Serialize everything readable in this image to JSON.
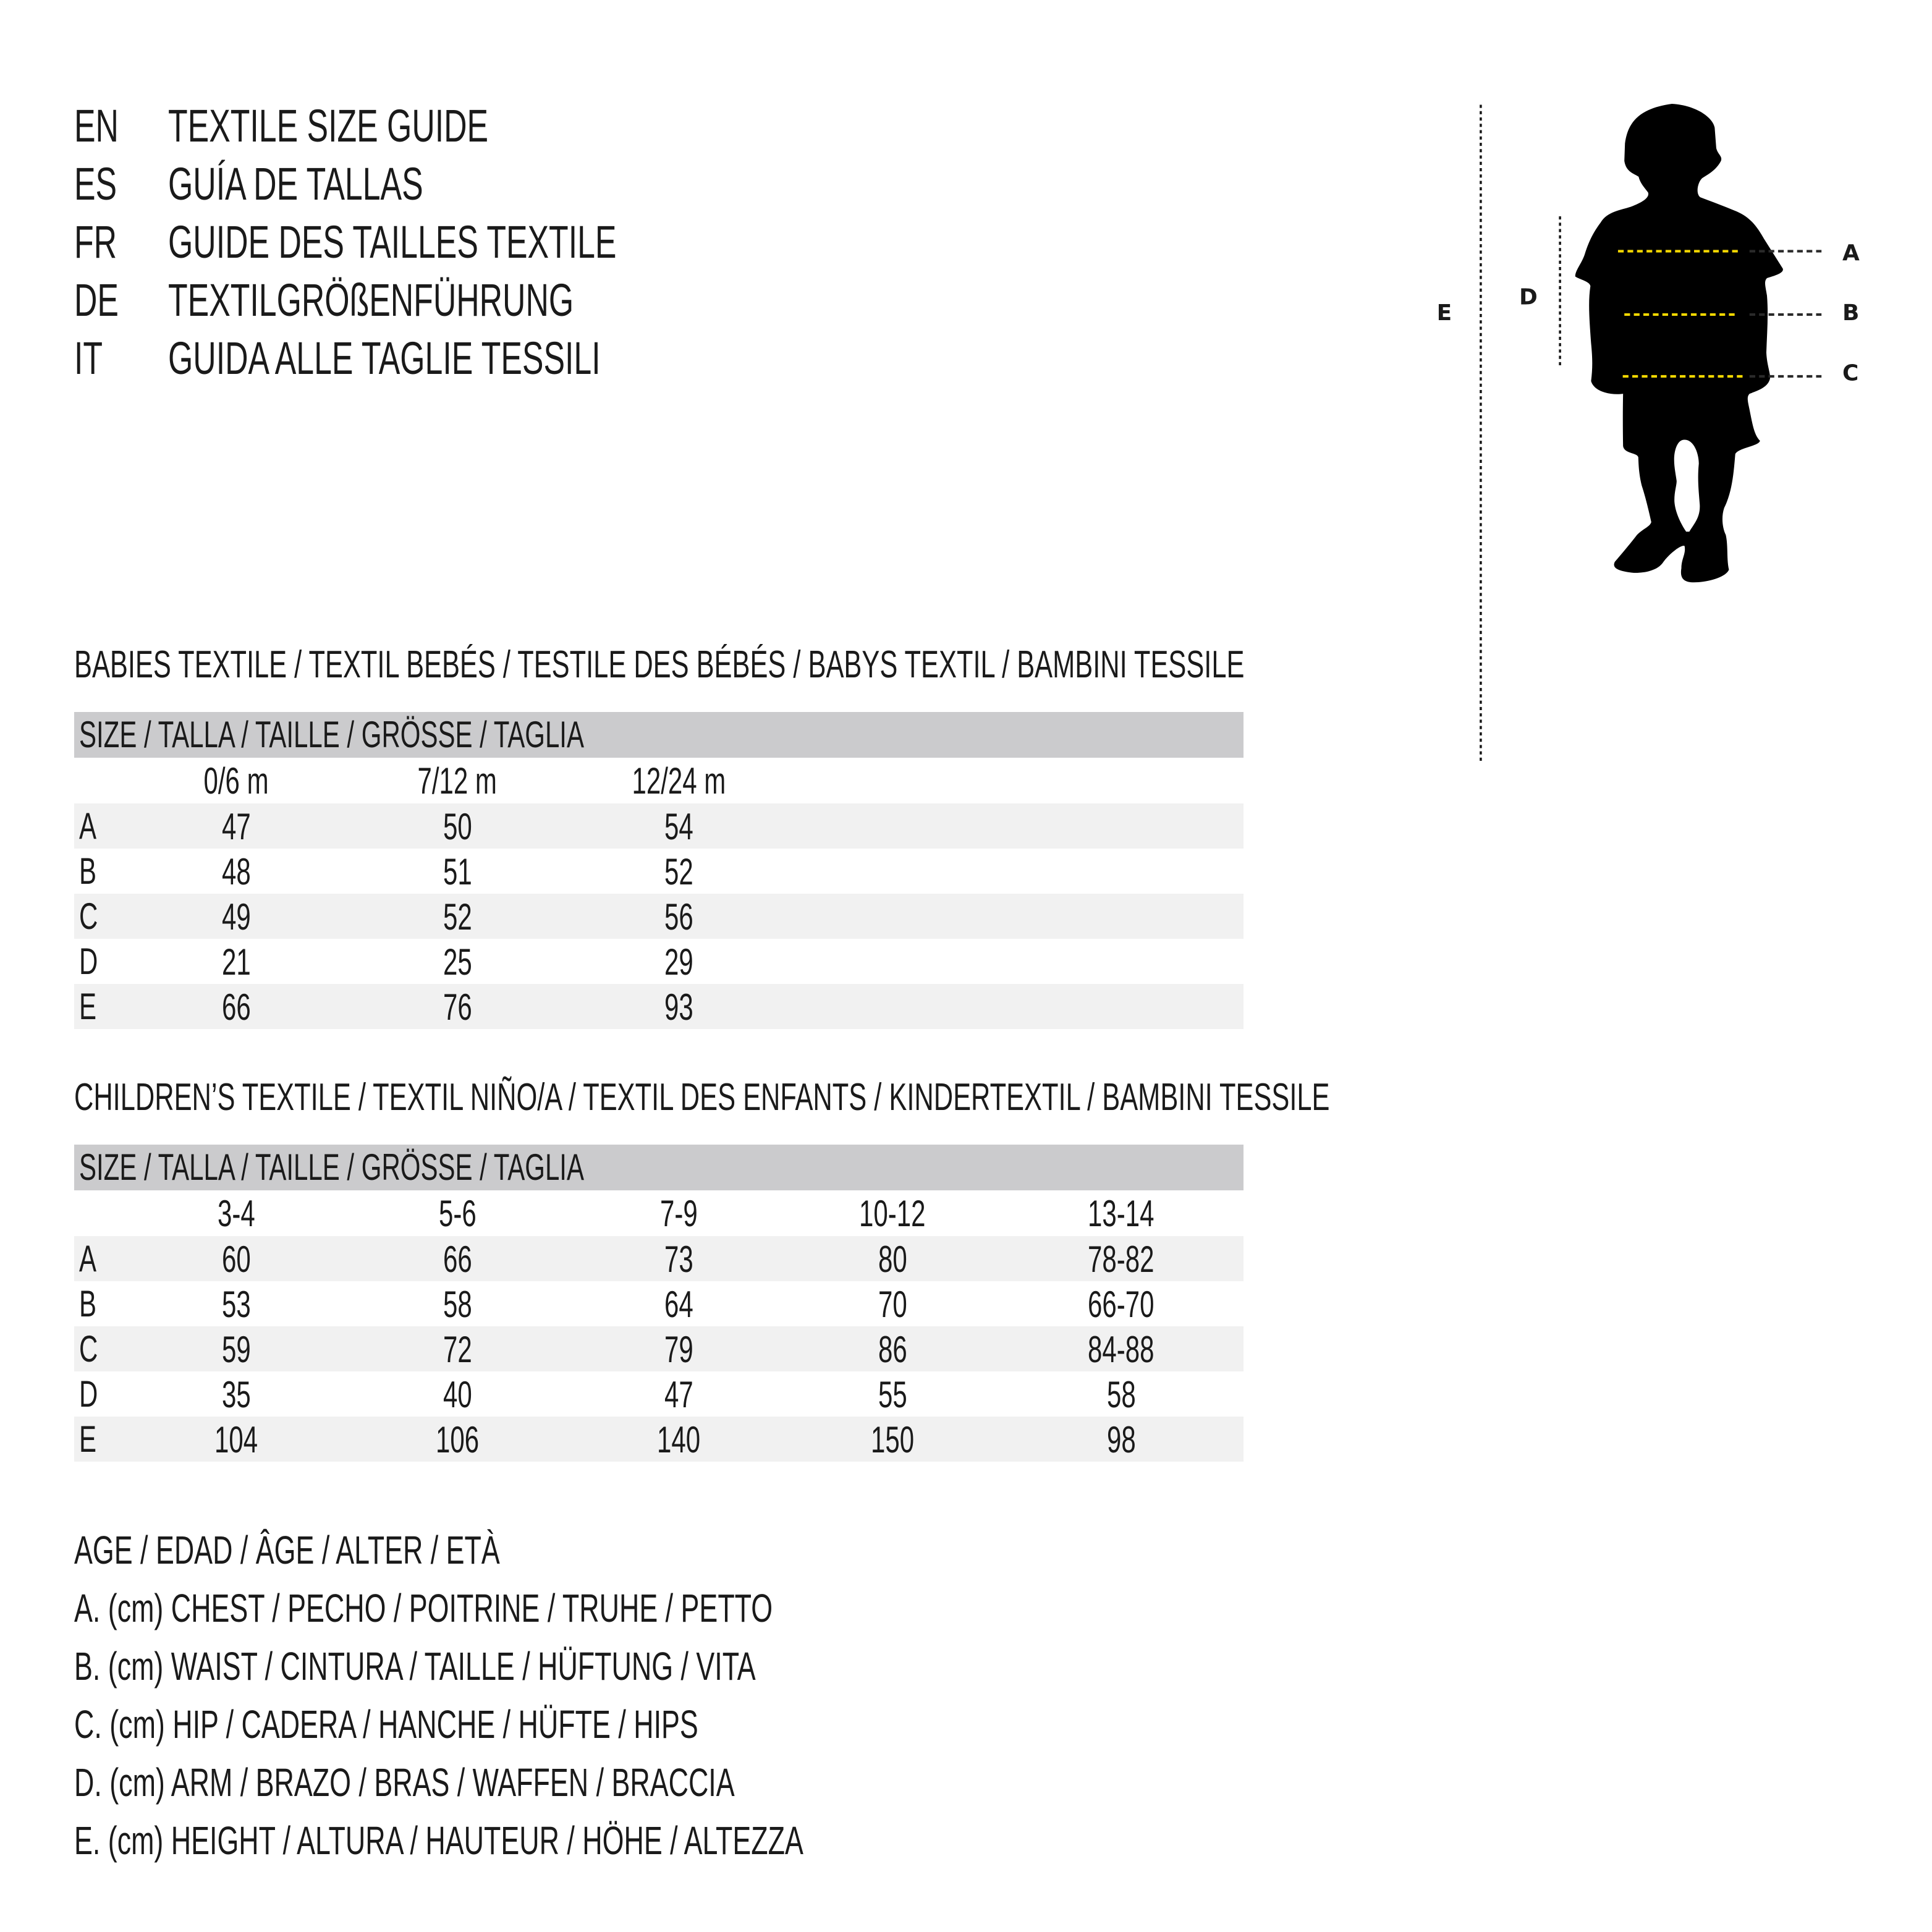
{
  "titles": [
    {
      "code": "EN",
      "text": "TEXTILE SIZE GUIDE"
    },
    {
      "code": "ES",
      "text": "GUÍA DE TALLAS"
    },
    {
      "code": "FR",
      "text": "GUIDE DES TAILLES TEXTILE"
    },
    {
      "code": "DE",
      "text": "TEXTILGRÖßENFÜHRUNG"
    },
    {
      "code": "IT",
      "text": "GUIDA ALLE TAGLIE TESSILI"
    }
  ],
  "babies": {
    "heading": "BABIES TEXTILE / TEXTIL BEBÉS / TESTILE DES BÉBÉS / BABYS TEXTIL / BAMBINI TESSILE",
    "size_header": "SIZE / TALLA / TAILLE / GRÖSSE / TAGLIA",
    "columns": [
      "0/6 m",
      "7/12 m",
      "12/24 m"
    ],
    "rows": [
      {
        "label": "A",
        "values": [
          "47",
          "50",
          "54"
        ]
      },
      {
        "label": "B",
        "values": [
          "48",
          "51",
          "52"
        ]
      },
      {
        "label": "C",
        "values": [
          "49",
          "52",
          "56"
        ]
      },
      {
        "label": "D",
        "values": [
          "21",
          "25",
          "29"
        ]
      },
      {
        "label": "E",
        "values": [
          "66",
          "76",
          "93"
        ]
      }
    ]
  },
  "children": {
    "heading": "CHILDREN’S TEXTILE / TEXTIL NIÑO/A / TEXTIL DES ENFANTS / KINDERTEXTIL / BAMBINI TESSILE",
    "size_header": "SIZE / TALLA / TAILLE / GRÖSSE / TAGLIA",
    "columns": [
      "3-4",
      "5-6",
      "7-9",
      "10-12",
      "13-14"
    ],
    "rows": [
      {
        "label": "A",
        "values": [
          "60",
          "66",
          "73",
          "80",
          "78-82"
        ]
      },
      {
        "label": "B",
        "values": [
          "53",
          "58",
          "64",
          "70",
          "66-70"
        ]
      },
      {
        "label": "C",
        "values": [
          "59",
          "72",
          "79",
          "86",
          "84-88"
        ]
      },
      {
        "label": "D",
        "values": [
          "35",
          "40",
          "47",
          "55",
          "58"
        ]
      },
      {
        "label": "E",
        "values": [
          "104",
          "106",
          "140",
          "150",
          "98"
        ]
      }
    ]
  },
  "legend": [
    "AGE / EDAD / ÂGE / ALTER / ETÀ",
    "A. (cm) CHEST / PECHO / POITRINE / TRUHE / PETTO",
    "B. (cm) WAIST / CINTURA / TAILLE / HÜFTUNG / VITA",
    "C. (cm) HIP / CADERA / HANCHE / HÜFTE / HIPS",
    "D. (cm) ARM / BRAZO / BRAS / WAFFEN / BRACCIA",
    "E. (cm) HEIGHT / ALTURA / HAUTEUR / HÖHE / ALTEZZA"
  ],
  "figure": {
    "labels": {
      "a": "A",
      "b": "B",
      "c": "C",
      "d": "D",
      "e": "E"
    },
    "colors": {
      "measure_line": "#f5d800",
      "guide_line": "#1a1a1a",
      "silhouette": "#000000"
    }
  }
}
